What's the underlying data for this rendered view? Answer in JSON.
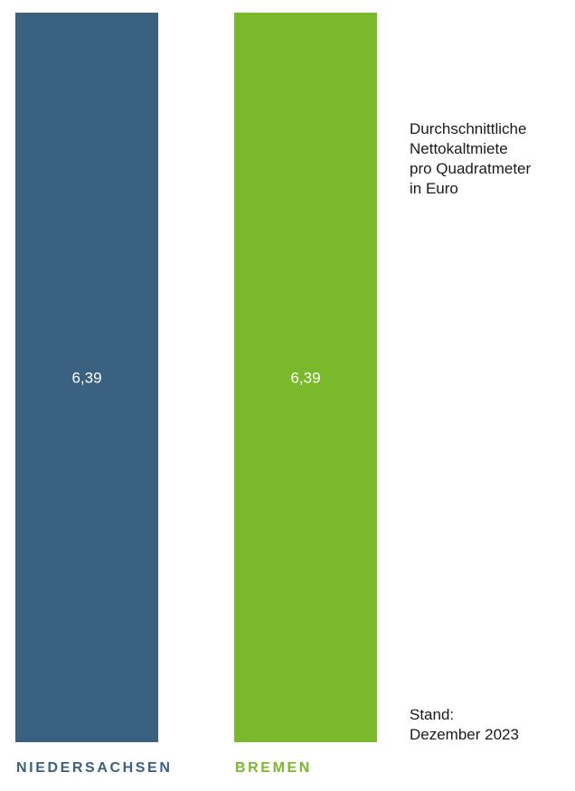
{
  "chart_data": {
    "type": "bar",
    "categories": [
      "NIEDERSACHSEN",
      "BREMEN"
    ],
    "values": [
      6.39,
      6.39
    ],
    "value_labels": [
      "6,39",
      "6,39"
    ],
    "colors": [
      "#3b6180",
      "#7ab82c"
    ],
    "ylim": [
      0,
      6.39
    ],
    "grid": false,
    "legend": "none"
  },
  "annotation": {
    "lines": [
      "Durchschnittliche",
      "Nettokaltmiete",
      "pro Quadratmeter",
      "in Euro"
    ]
  },
  "stand": {
    "lines": [
      "Stand:",
      "Dezember 2023"
    ]
  }
}
